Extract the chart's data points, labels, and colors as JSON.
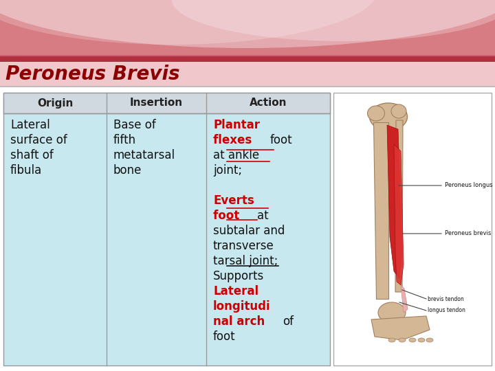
{
  "title": "Peroneus Brevis",
  "title_color": "#8B0000",
  "title_fontsize": 20,
  "col_headers": [
    "Origin",
    "Insertion",
    "Action"
  ],
  "origin_text": "Lateral\nsurface of\nshaft of\nfibula",
  "insertion_text": "Base of\nfifth\nmetatarsal\nbone",
  "body_bg": "#c8e8f0",
  "header_bg": "#d0d8e0",
  "title_bar_bg": "#f0c0c8",
  "top_decor_bg": "#d06070",
  "top_wave_color": "#e89090",
  "white_bg": "#ffffff",
  "table_border_color": "#999999",
  "image_panel_bg": "#ffffff",
  "action_lines": [
    {
      "segments": [
        {
          "text": "Plantar",
          "color": "#cc0000",
          "bold": true,
          "underline": true
        }
      ]
    },
    {
      "segments": [
        {
          "text": "flexes ",
          "color": "#cc0000",
          "bold": true,
          "underline": true
        },
        {
          "text": "foot",
          "color": "#111111",
          "bold": false,
          "underline": false
        }
      ]
    },
    {
      "segments": [
        {
          "text": "at ankle",
          "color": "#111111",
          "bold": false,
          "underline": false
        }
      ]
    },
    {
      "segments": [
        {
          "text": "joint;",
          "color": "#111111",
          "bold": false,
          "underline": false
        }
      ]
    },
    {
      "segments": []
    },
    {
      "segments": [
        {
          "text": "Everts",
          "color": "#cc0000",
          "bold": true,
          "underline": true
        }
      ]
    },
    {
      "segments": [
        {
          "text": "foot ",
          "color": "#cc0000",
          "bold": true,
          "underline": true
        },
        {
          "text": "at",
          "color": "#111111",
          "bold": false,
          "underline": false
        }
      ]
    },
    {
      "segments": [
        {
          "text": "subtalar and",
          "color": "#111111",
          "bold": false,
          "underline": false
        }
      ]
    },
    {
      "segments": [
        {
          "text": "transverse",
          "color": "#111111",
          "bold": false,
          "underline": false
        }
      ]
    },
    {
      "segments": [
        {
          "text": "tarsal joint;",
          "color": "#111111",
          "bold": false,
          "underline": false
        }
      ]
    },
    {
      "segments": [
        {
          "text": "Supports",
          "color": "#111111",
          "bold": false,
          "underline": true
        }
      ]
    },
    {
      "segments": [
        {
          "text": "Lateral",
          "color": "#cc0000",
          "bold": true,
          "underline": false
        }
      ]
    },
    {
      "segments": [
        {
          "text": "longitudi",
          "color": "#cc0000",
          "bold": true,
          "underline": false
        }
      ]
    },
    {
      "segments": [
        {
          "text": "nal arch ",
          "color": "#cc0000",
          "bold": true,
          "underline": false
        },
        {
          "text": "of",
          "color": "#111111",
          "bold": false,
          "underline": false
        }
      ]
    },
    {
      "segments": [
        {
          "text": "foot",
          "color": "#111111",
          "bold": false,
          "underline": false
        }
      ]
    }
  ],
  "font_size_body": 11,
  "font_size_header": 11
}
